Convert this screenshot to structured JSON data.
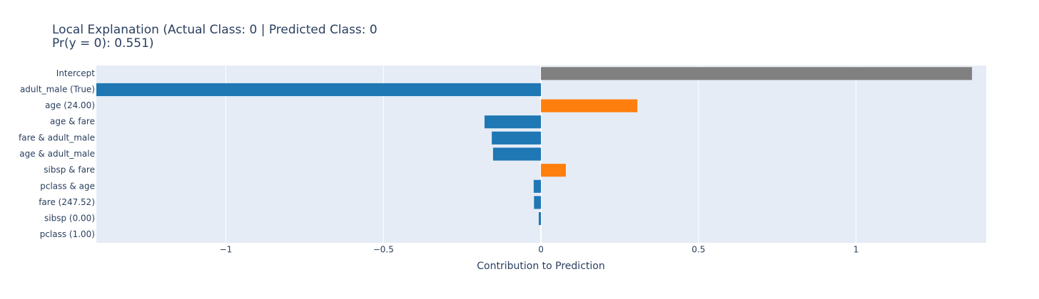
{
  "chart_data": {
    "type": "barh",
    "title": [
      "Local Explanation (Actual Class: 0 | Predicted Class: 0",
      "Pr(y = 0): 0.551)"
    ],
    "x_label": "Contribution to Prediction",
    "categories": [
      "Intercept",
      "adult_male (True)",
      "age (24.00)",
      "age & fare",
      "fare & adult_male",
      "age & adult_male",
      "sibsp & fare",
      "pclass & age",
      "fare (247.52)",
      "sibsp (0.00)",
      "pclass (1.00)"
    ],
    "values": [
      1.368,
      -1.411,
      0.306,
      -0.179,
      -0.156,
      -0.152,
      0.079,
      -0.023,
      -0.022,
      -0.007,
      0
    ],
    "colors": [
      "#808080",
      "#1f77b4",
      "#ff7f0e",
      "#1f77b4",
      "#1f77b4",
      "#1f77b4",
      "#ff7f0e",
      "#1f77b4",
      "#1f77b4",
      "#1f77b4",
      "#1f77b4"
    ],
    "xlim": [
      -1.411,
      1.413
    ],
    "xticks": [
      {
        "value": -1,
        "label": "−1"
      },
      {
        "value": -0.5,
        "label": "−0.5"
      },
      0,
      0.5,
      1
    ],
    "grid": true
  }
}
